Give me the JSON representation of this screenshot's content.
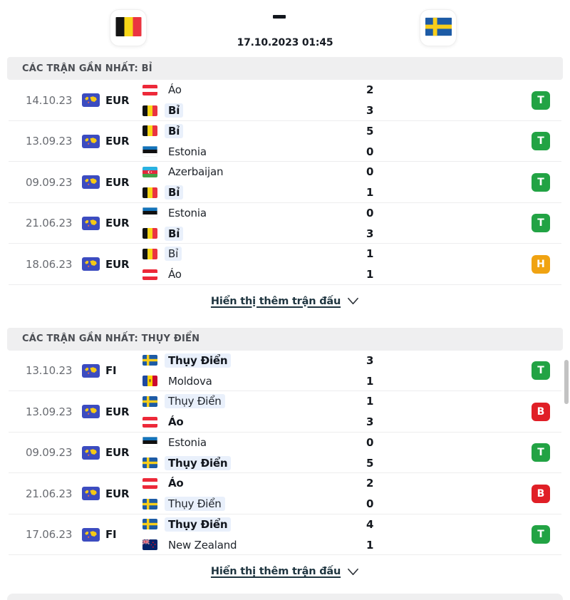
{
  "header": {
    "home_flag_icon": "belgium-flag-icon",
    "away_flag_icon": "sweden-flag-icon",
    "score_separator": "-",
    "kickoff_datetime": "17.10.2023 01:45"
  },
  "sections": [
    {
      "title": "CÁC TRẬN GẦN NHẤT: BỈ",
      "show_more_label": "Hiển thị thêm trận đấu",
      "matches": [
        {
          "date": "14.10.23",
          "competition": "EUR",
          "teams": [
            {
              "name": "Áo",
              "flag": "austria",
              "score": "2",
              "winner": false,
              "focus": false
            },
            {
              "name": "Bỉ",
              "flag": "belgium",
              "score": "3",
              "winner": true,
              "focus": true
            }
          ],
          "result": {
            "letter": "T",
            "type": "win"
          }
        },
        {
          "date": "13.09.23",
          "competition": "EUR",
          "teams": [
            {
              "name": "Bỉ",
              "flag": "belgium",
              "score": "5",
              "winner": true,
              "focus": true
            },
            {
              "name": "Estonia",
              "flag": "estonia",
              "score": "0",
              "winner": false,
              "focus": false
            }
          ],
          "result": {
            "letter": "T",
            "type": "win"
          }
        },
        {
          "date": "09.09.23",
          "competition": "EUR",
          "teams": [
            {
              "name": "Azerbaijan",
              "flag": "azerbaijan",
              "score": "0",
              "winner": false,
              "focus": false
            },
            {
              "name": "Bỉ",
              "flag": "belgium",
              "score": "1",
              "winner": true,
              "focus": true
            }
          ],
          "result": {
            "letter": "T",
            "type": "win"
          }
        },
        {
          "date": "21.06.23",
          "competition": "EUR",
          "teams": [
            {
              "name": "Estonia",
              "flag": "estonia",
              "score": "0",
              "winner": false,
              "focus": false
            },
            {
              "name": "Bỉ",
              "flag": "belgium",
              "score": "3",
              "winner": true,
              "focus": true
            }
          ],
          "result": {
            "letter": "T",
            "type": "win"
          }
        },
        {
          "date": "18.06.23",
          "competition": "EUR",
          "teams": [
            {
              "name": "Bỉ",
              "flag": "belgium",
              "score": "1",
              "winner": false,
              "focus": true
            },
            {
              "name": "Áo",
              "flag": "austria",
              "score": "1",
              "winner": false,
              "focus": false
            }
          ],
          "result": {
            "letter": "H",
            "type": "draw"
          }
        }
      ]
    },
    {
      "title": "CÁC TRẬN GẦN NHẤT: THỤY ĐIỂN",
      "show_more_label": "Hiển thị thêm trận đấu",
      "matches": [
        {
          "date": "13.10.23",
          "competition": "FI",
          "teams": [
            {
              "name": "Thụy Điển",
              "flag": "sweden",
              "score": "3",
              "winner": true,
              "focus": true
            },
            {
              "name": "Moldova",
              "flag": "moldova",
              "score": "1",
              "winner": false,
              "focus": false
            }
          ],
          "result": {
            "letter": "T",
            "type": "win"
          }
        },
        {
          "date": "13.09.23",
          "competition": "EUR",
          "teams": [
            {
              "name": "Thụy Điển",
              "flag": "sweden",
              "score": "1",
              "winner": false,
              "focus": true
            },
            {
              "name": "Áo",
              "flag": "austria",
              "score": "3",
              "winner": true,
              "focus": false
            }
          ],
          "result": {
            "letter": "B",
            "type": "loss"
          }
        },
        {
          "date": "09.09.23",
          "competition": "EUR",
          "teams": [
            {
              "name": "Estonia",
              "flag": "estonia",
              "score": "0",
              "winner": false,
              "focus": false
            },
            {
              "name": "Thụy Điển",
              "flag": "sweden",
              "score": "5",
              "winner": true,
              "focus": true
            }
          ],
          "result": {
            "letter": "T",
            "type": "win"
          }
        },
        {
          "date": "21.06.23",
          "competition": "EUR",
          "teams": [
            {
              "name": "Áo",
              "flag": "austria",
              "score": "2",
              "winner": true,
              "focus": false
            },
            {
              "name": "Thụy Điển",
              "flag": "sweden",
              "score": "0",
              "winner": false,
              "focus": true
            }
          ],
          "result": {
            "letter": "B",
            "type": "loss"
          }
        },
        {
          "date": "17.06.23",
          "competition": "FI",
          "teams": [
            {
              "name": "Thụy Điển",
              "flag": "sweden",
              "score": "4",
              "winner": true,
              "focus": true
            },
            {
              "name": "New Zealand",
              "flag": "new-zealand",
              "score": "1",
              "winner": false,
              "focus": false
            }
          ],
          "result": {
            "letter": "T",
            "type": "win"
          }
        }
      ]
    }
  ],
  "icons": {
    "competition": "world-map-icon",
    "show_more_chevron": "chevron-down-icon"
  },
  "colors": {
    "win": "#22a344",
    "draw": "#f0a312",
    "loss": "#e01f26",
    "focus_highlight": "#e9f0fb",
    "section_bg": "#efeff0"
  }
}
